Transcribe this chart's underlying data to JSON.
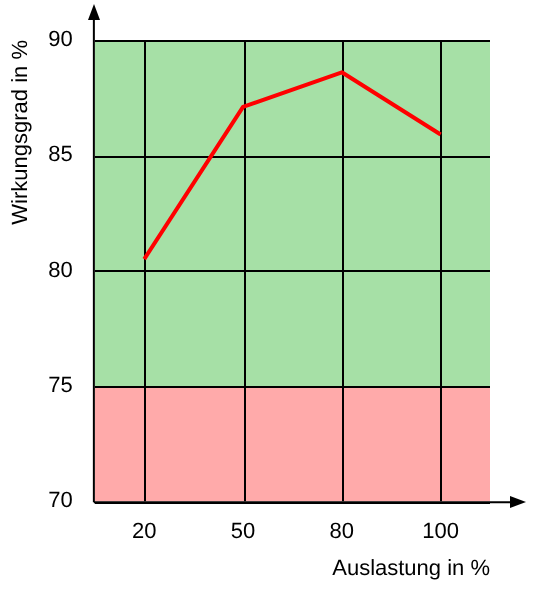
{
  "chart_data": {
    "type": "line",
    "xlabel": "Auslastung in %",
    "ylabel": "Wirkungsgrad in %",
    "categories": [
      "20",
      "50",
      "80",
      "100"
    ],
    "series": [
      {
        "color": "#ff0000",
        "values": [
          80.5,
          87.1,
          88.6,
          85.9
        ]
      }
    ],
    "ylim": [
      70,
      90
    ],
    "yticks": [
      70,
      75,
      80,
      85,
      90
    ],
    "grid": true,
    "legend": false,
    "marker": "none",
    "line_style": "solid",
    "bands": [
      {
        "axis": "y",
        "from": 75,
        "to": 90,
        "color": "#a6e0a6"
      },
      {
        "axis": "y",
        "from": 70,
        "to": 75,
        "color": "#ffaaaa"
      }
    ]
  }
}
